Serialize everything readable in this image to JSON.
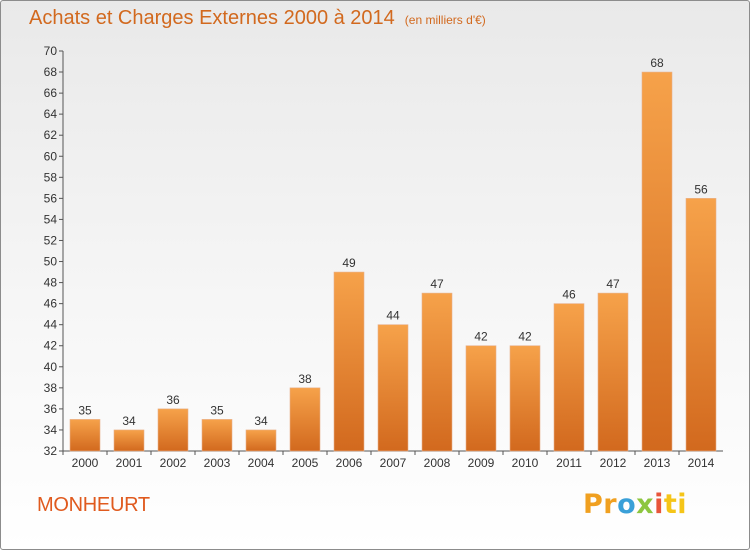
{
  "chart_data": {
    "type": "bar",
    "title": "Achats et Charges Externes 2000 à 2014",
    "subtitle": "(en milliers d'€)",
    "categories": [
      "2000",
      "2001",
      "2002",
      "2003",
      "2004",
      "2005",
      "2006",
      "2007",
      "2008",
      "2009",
      "2010",
      "2011",
      "2012",
      "2013",
      "2014"
    ],
    "values": [
      35,
      34,
      36,
      35,
      34,
      38,
      49,
      44,
      47,
      42,
      42,
      46,
      47,
      68,
      56
    ],
    "ylim": [
      32,
      70
    ],
    "yticks": [
      32,
      34,
      36,
      38,
      40,
      42,
      44,
      46,
      48,
      50,
      52,
      54,
      56,
      58,
      60,
      62,
      64,
      66,
      68,
      70
    ],
    "grid": false,
    "bar_color": "#f08a2a"
  },
  "commune": "MONHEURT",
  "logo": {
    "parts": [
      "Pr",
      "o",
      "x",
      "i",
      "ti"
    ],
    "colors": [
      "#f0a020",
      "#3aa0d8",
      "#8dc63f",
      "#e8553a",
      "#f5c518"
    ]
  }
}
